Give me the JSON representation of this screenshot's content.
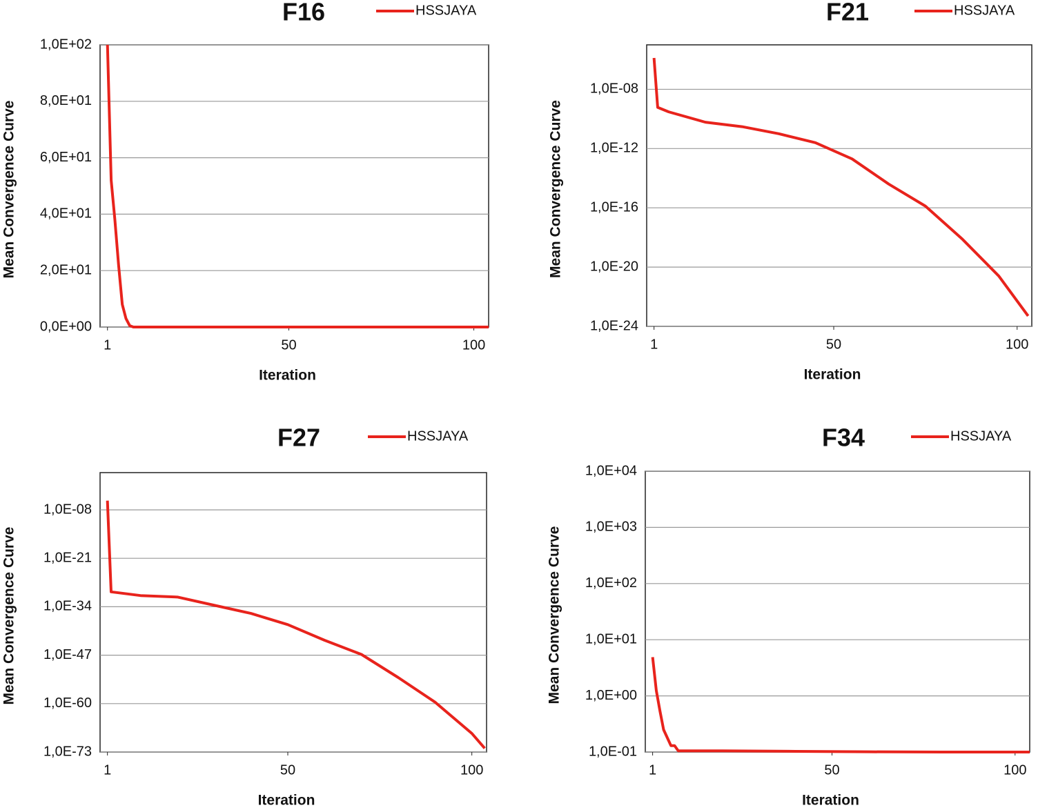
{
  "chart_data": [
    {
      "type": "line",
      "title": "F16",
      "xlabel": "Iteration",
      "ylabel": "Mean Convergence Curve",
      "log": false,
      "grid": true,
      "xlim": [
        -1,
        104
      ],
      "xticks": [
        1,
        50,
        100
      ],
      "ylim": [
        0,
        100
      ],
      "yticks": [
        {
          "value": 0,
          "label": "0,0E+00"
        },
        {
          "value": 20,
          "label": "2,0E+01"
        },
        {
          "value": 40,
          "label": "4,0E+01"
        },
        {
          "value": 60,
          "label": "6,0E+01"
        },
        {
          "value": 80,
          "label": "8,0E+01"
        },
        {
          "value": 100,
          "label": "1,0E+02"
        }
      ],
      "x": [
        1,
        2,
        3,
        4,
        5,
        6,
        7,
        8,
        20,
        40,
        60,
        80,
        104
      ],
      "series": [
        {
          "name": "HSSJAYA",
          "color": "#e8231c",
          "values": [
            100,
            52,
            38,
            22,
            8,
            3,
            0.5,
            0,
            0,
            0,
            0,
            0,
            0
          ]
        }
      ]
    },
    {
      "type": "line",
      "title": "F21",
      "xlabel": "Iteration",
      "ylabel": "Mean Convergence Curve",
      "log": true,
      "grid": true,
      "xlim": [
        -1,
        104
      ],
      "xticks": [
        1,
        50,
        100
      ],
      "ylim": [
        1e-24,
        1e-05
      ],
      "yticks": [
        {
          "value": 1e-24,
          "label": "1,0E-24"
        },
        {
          "value": 1e-20,
          "label": "1,0E-20"
        },
        {
          "value": 1e-16,
          "label": "1,0E-16"
        },
        {
          "value": 1e-12,
          "label": "1,0E-12"
        },
        {
          "value": 1e-08,
          "label": "1,0E-08"
        }
      ],
      "x": [
        1,
        2,
        5,
        15,
        25,
        35,
        45,
        55,
        65,
        75,
        85,
        95,
        103
      ],
      "series": [
        {
          "name": "HSSJAYA",
          "color": "#e8231c",
          "values": [
            1.3e-06,
            6e-10,
            3e-10,
            6e-11,
            3e-11,
            1e-11,
            2.5e-12,
            2e-13,
            4e-15,
            1.3e-16,
            8e-19,
            2.5e-21,
            5e-24
          ]
        }
      ]
    },
    {
      "type": "line",
      "title": "F27",
      "xlabel": "Iteration",
      "ylabel": "Mean Convergence Curve",
      "log": true,
      "grid": true,
      "xlim": [
        -1,
        104
      ],
      "xticks": [
        1,
        50,
        100
      ],
      "ylim": [
        1e-73,
        100
      ],
      "yticks": [
        {
          "value": 1e-73,
          "label": "1,0E-73"
        },
        {
          "value": 1e-60,
          "label": "1,0E-60"
        },
        {
          "value": 1e-47,
          "label": "1,0E-47"
        },
        {
          "value": 1e-34,
          "label": "1,0E-34"
        },
        {
          "value": 1e-21,
          "label": "1,0E-21"
        },
        {
          "value": 1e-08,
          "label": "1,0E-08"
        }
      ],
      "x": [
        1,
        2,
        10,
        20,
        30,
        40,
        50,
        60,
        70,
        80,
        90,
        100,
        103.5
      ],
      "series": [
        {
          "name": "HSSJAYA",
          "color": "#e8231c",
          "values": [
            3e-06,
            1e-30,
            1e-31,
            4e-32,
            2.5e-34,
            1.6e-36,
            1.6e-39,
            1e-43,
            1.6e-47,
            1e-53,
            2.5e-60,
            1e-68,
            1e-72
          ]
        }
      ]
    },
    {
      "type": "line",
      "title": "F34",
      "xlabel": "Iteration",
      "ylabel": "Mean Convergence Curve",
      "log": true,
      "grid": true,
      "xlim": [
        -1,
        104
      ],
      "xticks": [
        1,
        50,
        100
      ],
      "ylim": [
        0.1,
        10000
      ],
      "yticks": [
        {
          "value": 0.1,
          "label": "1,0E-01"
        },
        {
          "value": 1,
          "label": "1,0E+00"
        },
        {
          "value": 10,
          "label": "1,0E+01"
        },
        {
          "value": 100,
          "label": "1,0E+02"
        },
        {
          "value": 1000,
          "label": "1,0E+03"
        },
        {
          "value": 10000,
          "label": "1,0E+04"
        }
      ],
      "x": [
        1,
        2,
        3,
        4,
        6,
        7,
        8,
        20,
        40,
        60,
        80,
        104
      ],
      "series": [
        {
          "name": "HSSJAYA",
          "color": "#e8231c",
          "values": [
            4.9,
            1.25,
            0.54,
            0.25,
            0.13,
            0.13,
            0.105,
            0.105,
            0.103,
            0.101,
            0.1,
            0.1
          ]
        }
      ]
    }
  ]
}
